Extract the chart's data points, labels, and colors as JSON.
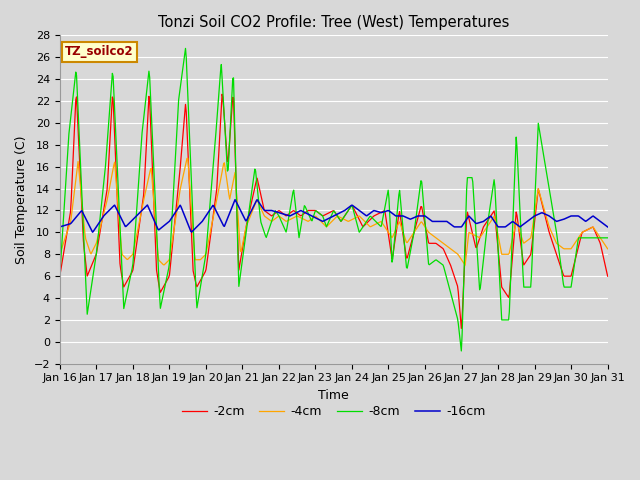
{
  "title": "Tonzi Soil CO2 Profile: Tree (West) Temperatures",
  "xlabel": "Time",
  "ylabel": "Soil Temperature (C)",
  "ylim": [
    -2,
    28
  ],
  "yticks": [
    -2,
    0,
    2,
    4,
    6,
    8,
    10,
    12,
    14,
    16,
    18,
    20,
    22,
    24,
    26,
    28
  ],
  "xtick_labels": [
    "Jan 16",
    "Jan 17",
    "Jan 18",
    "Jan 19",
    "Jan 20",
    "Jan 21",
    "Jan 22",
    "Jan 23",
    "Jan 24",
    "Jan 25",
    "Jan 26",
    "Jan 27",
    "Jan 28",
    "Jan 29",
    "Jan 30",
    "Jan 31"
  ],
  "legend_label": "TZ_soilco2",
  "series_labels": [
    "-2cm",
    "-4cm",
    "-8cm",
    "-16cm"
  ],
  "series_colors": [
    "#ff0000",
    "#ffa500",
    "#00dd00",
    "#0000cc"
  ],
  "background_color": "#d8d8d8",
  "plot_bg_color": "#d8d8d8",
  "grid_color": "#ffffff"
}
